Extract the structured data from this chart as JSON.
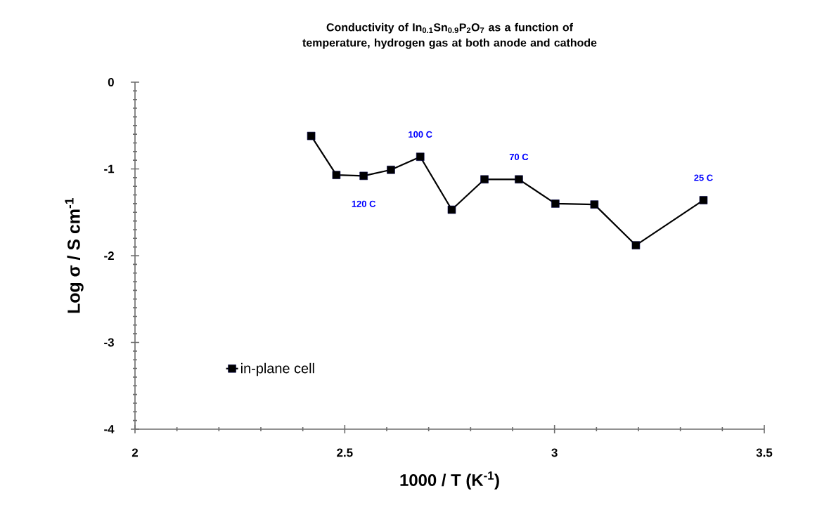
{
  "chart_data": {
    "type": "line",
    "title": "Conductivity of In$_{0.1}$Sn$_{0.9}$P$_{2}$O$_{7}$ as a function of temperature, hydrogen gas at both anode and cathode",
    "xlabel": "1000 / T  (K$^{-1}$)",
    "ylabel": "Log σ / S cm$^{-1}$",
    "x": [
      2.42,
      2.48,
      2.545,
      2.61,
      2.68,
      2.755,
      2.833,
      2.915,
      3.002,
      3.095,
      3.194,
      3.355
    ],
    "series": [
      {
        "name": "in-plane cell",
        "color": "#000000",
        "values": [
          -0.62,
          -1.07,
          -1.08,
          -1.01,
          -0.86,
          -1.47,
          -1.12,
          -1.12,
          -1.4,
          -1.41,
          -1.88,
          -1.36
        ]
      }
    ],
    "xlim": [
      2,
      3.5
    ],
    "ylim": [
      -4,
      0
    ],
    "xticks": [
      2,
      2.5,
      3,
      3.5
    ],
    "yticks": [
      -4,
      -3,
      -2,
      -1,
      0
    ],
    "annotations": [
      {
        "text": "100 C",
        "x": 2.68,
        "y": -0.86
      },
      {
        "text": "120 C",
        "x": 2.545,
        "y": -1.08
      },
      {
        "text": "70 C",
        "x": 2.915,
        "y": -1.12
      },
      {
        "text": "25 C",
        "x": 3.355,
        "y": -1.36
      }
    ],
    "grid": false,
    "legend": "bottom left",
    "marker": "square",
    "line_style": "solid"
  }
}
